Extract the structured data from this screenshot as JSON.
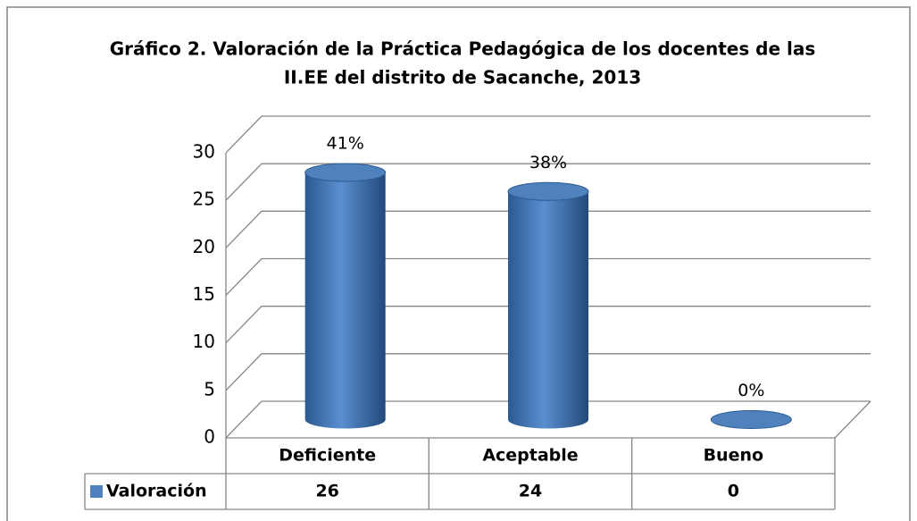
{
  "chart_data": {
    "type": "bar",
    "title": "Gráfico 2. Valoración de la Práctica Pedagógica de los docentes de las",
    "subtitle": "II.EE del distrito de Sacanche, 2013",
    "categories": [
      "Deficiente",
      "Aceptable",
      "Bueno"
    ],
    "series": [
      {
        "name": "Valoración",
        "color": "#4f81bd",
        "values": [
          26,
          24,
          0
        ]
      }
    ],
    "data_labels": [
      "41%",
      "38%",
      "0%"
    ],
    "ylim": [
      0,
      30
    ],
    "yticks": [
      0,
      5,
      10,
      15,
      20,
      25,
      30
    ],
    "grid": true
  }
}
